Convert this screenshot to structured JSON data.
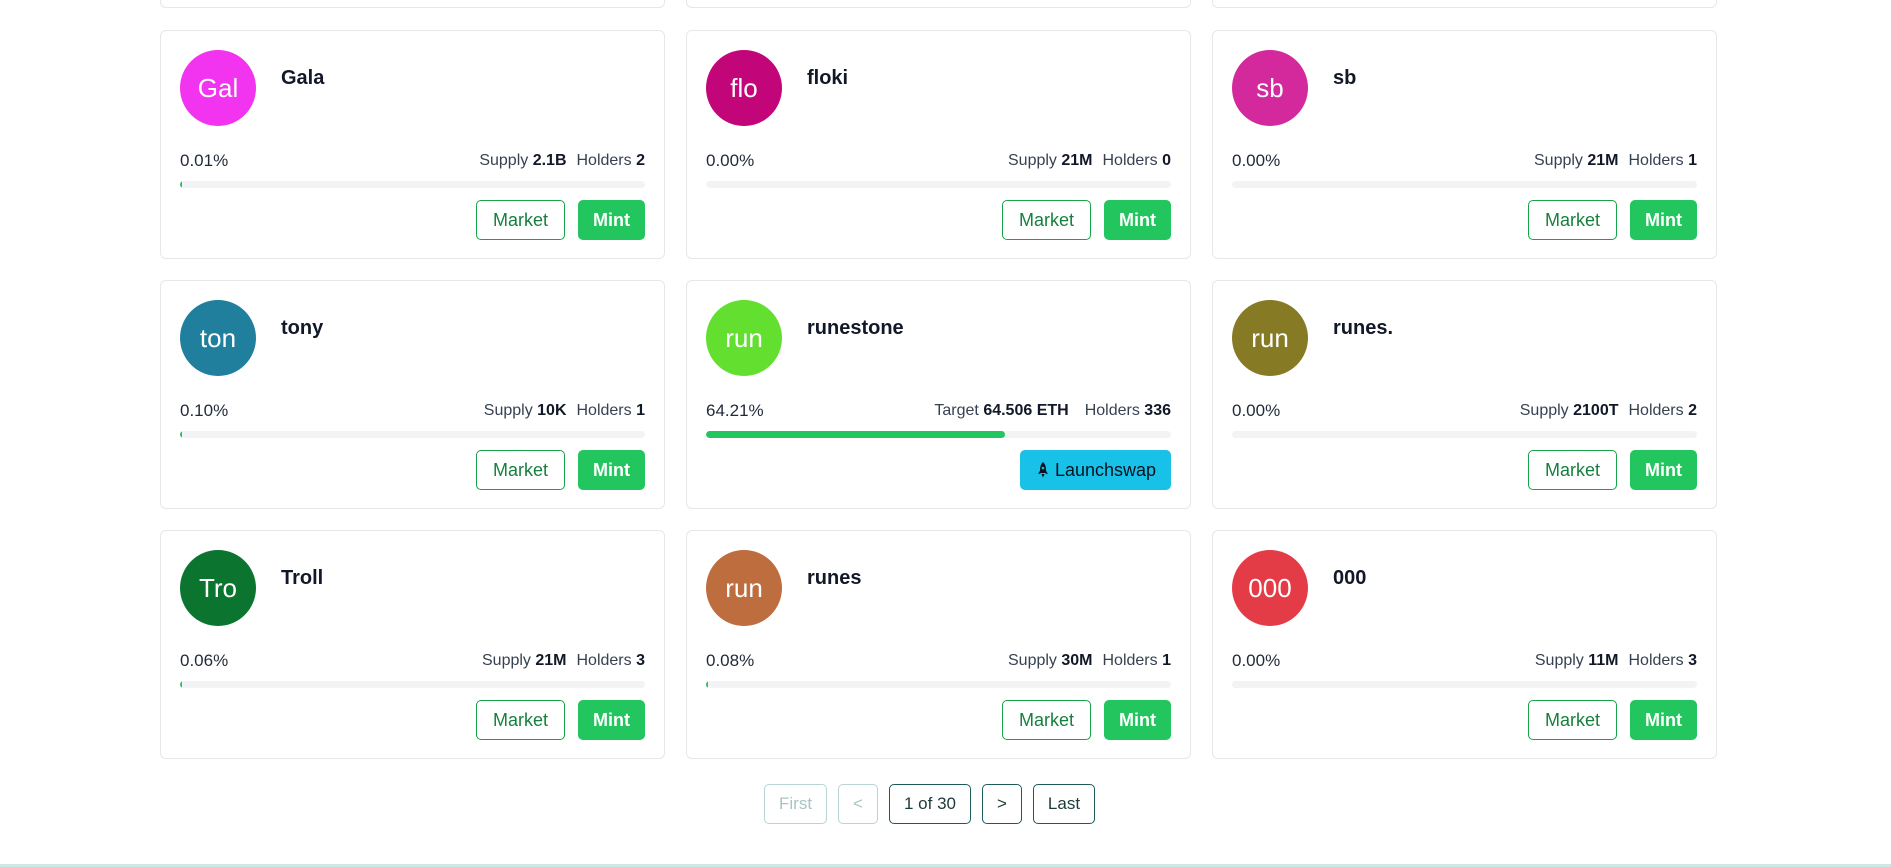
{
  "labels": {
    "supply": "Supply",
    "holders": "Holders",
    "target": "Target",
    "market_button": "Market",
    "mint_button": "Mint"
  },
  "tokens": [
    {
      "avatar": "Gal",
      "name": "Gala",
      "avatar_color": "#f233f0",
      "percent": "0.01%",
      "progress": 0.0001,
      "supply": "2.1B",
      "holders": "2"
    },
    {
      "avatar": "flo",
      "name": "floki",
      "avatar_color": "#c2067a",
      "percent": "0.00%",
      "progress": 0,
      "supply": "21M",
      "holders": "0"
    },
    {
      "avatar": "sb",
      "name": "sb",
      "avatar_color": "#d3299d",
      "percent": "0.00%",
      "progress": 0,
      "supply": "21M",
      "holders": "1"
    },
    {
      "avatar": "ton",
      "name": "tony",
      "avatar_color": "#1f7f9c",
      "percent": "0.10%",
      "progress": 0.001,
      "supply": "10K",
      "holders": "1"
    },
    {
      "avatar": "run",
      "name": "runestone",
      "avatar_color": "#63df2f",
      "percent": "64.21%",
      "progress": 0.6421,
      "target": "64.506 ETH",
      "holders": "336",
      "launch_button": "Launchswap",
      "launch_icon": "rocket-icon"
    },
    {
      "avatar": "run",
      "name": "runes.",
      "avatar_color": "#877a25",
      "percent": "0.00%",
      "progress": 0,
      "supply": "2100T",
      "holders": "2"
    },
    {
      "avatar": "Tro",
      "name": "Troll",
      "avatar_color": "#0b7530",
      "percent": "0.06%",
      "progress": 0.0006,
      "supply": "21M",
      "holders": "3"
    },
    {
      "avatar": "run",
      "name": "runes",
      "avatar_color": "#be6d3f",
      "percent": "0.08%",
      "progress": 0.0008,
      "supply": "30M",
      "holders": "1"
    },
    {
      "avatar": "000",
      "name": "000",
      "avatar_color": "#e33c47",
      "percent": "0.00%",
      "progress": 0,
      "supply": "11M",
      "holders": "3"
    }
  ],
  "pagination": {
    "first": "First",
    "prev": "<",
    "current": "1 of 30",
    "next": ">",
    "last": "Last"
  },
  "colors": {
    "mint_green": "#22c55e",
    "market_border": "#16a34a",
    "launchswap_blue": "#17c1e8",
    "progress_fill": "#22c55e",
    "pager_border": "#1e5b5b"
  }
}
